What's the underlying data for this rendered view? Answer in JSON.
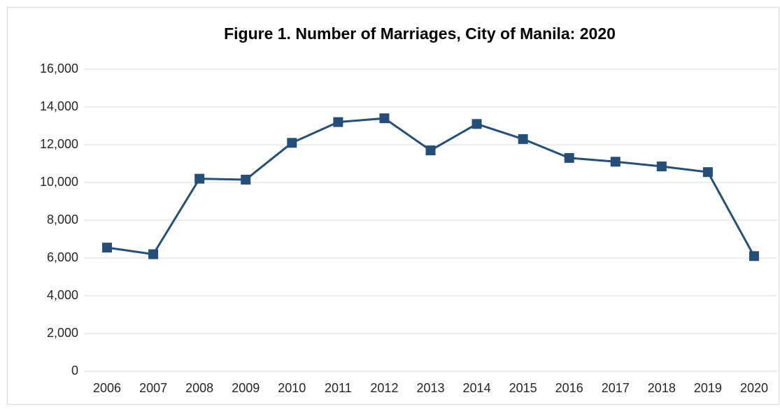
{
  "chart_data": {
    "type": "line",
    "title": "Figure 1. Number of Marriages, City of Manila: 2020",
    "categories": [
      "2006",
      "2007",
      "2008",
      "2009",
      "2010",
      "2011",
      "2012",
      "2013",
      "2014",
      "2015",
      "2016",
      "2017",
      "2018",
      "2019",
      "2020"
    ],
    "series": [
      {
        "name": "Number of Marriages",
        "color": "#254e78",
        "values": [
          6550,
          6200,
          10200,
          10150,
          12100,
          13200,
          13400,
          11700,
          13100,
          12300,
          11300,
          11100,
          10850,
          10550,
          6100
        ]
      }
    ],
    "ylim": [
      0,
      16000
    ],
    "yticks": [
      0,
      {
        "value": 2000,
        "label": "2,000"
      },
      {
        "value": 4000,
        "label": "4,000"
      },
      {
        "value": 6000,
        "label": "6,000"
      },
      {
        "value": 8000,
        "label": "8,000"
      },
      {
        "value": 10000,
        "label": "10,000"
      },
      {
        "value": 12000,
        "label": "12,000"
      },
      {
        "value": 14000,
        "label": "14,000"
      },
      {
        "value": 16000,
        "label": "16,000"
      }
    ],
    "grid": true
  }
}
